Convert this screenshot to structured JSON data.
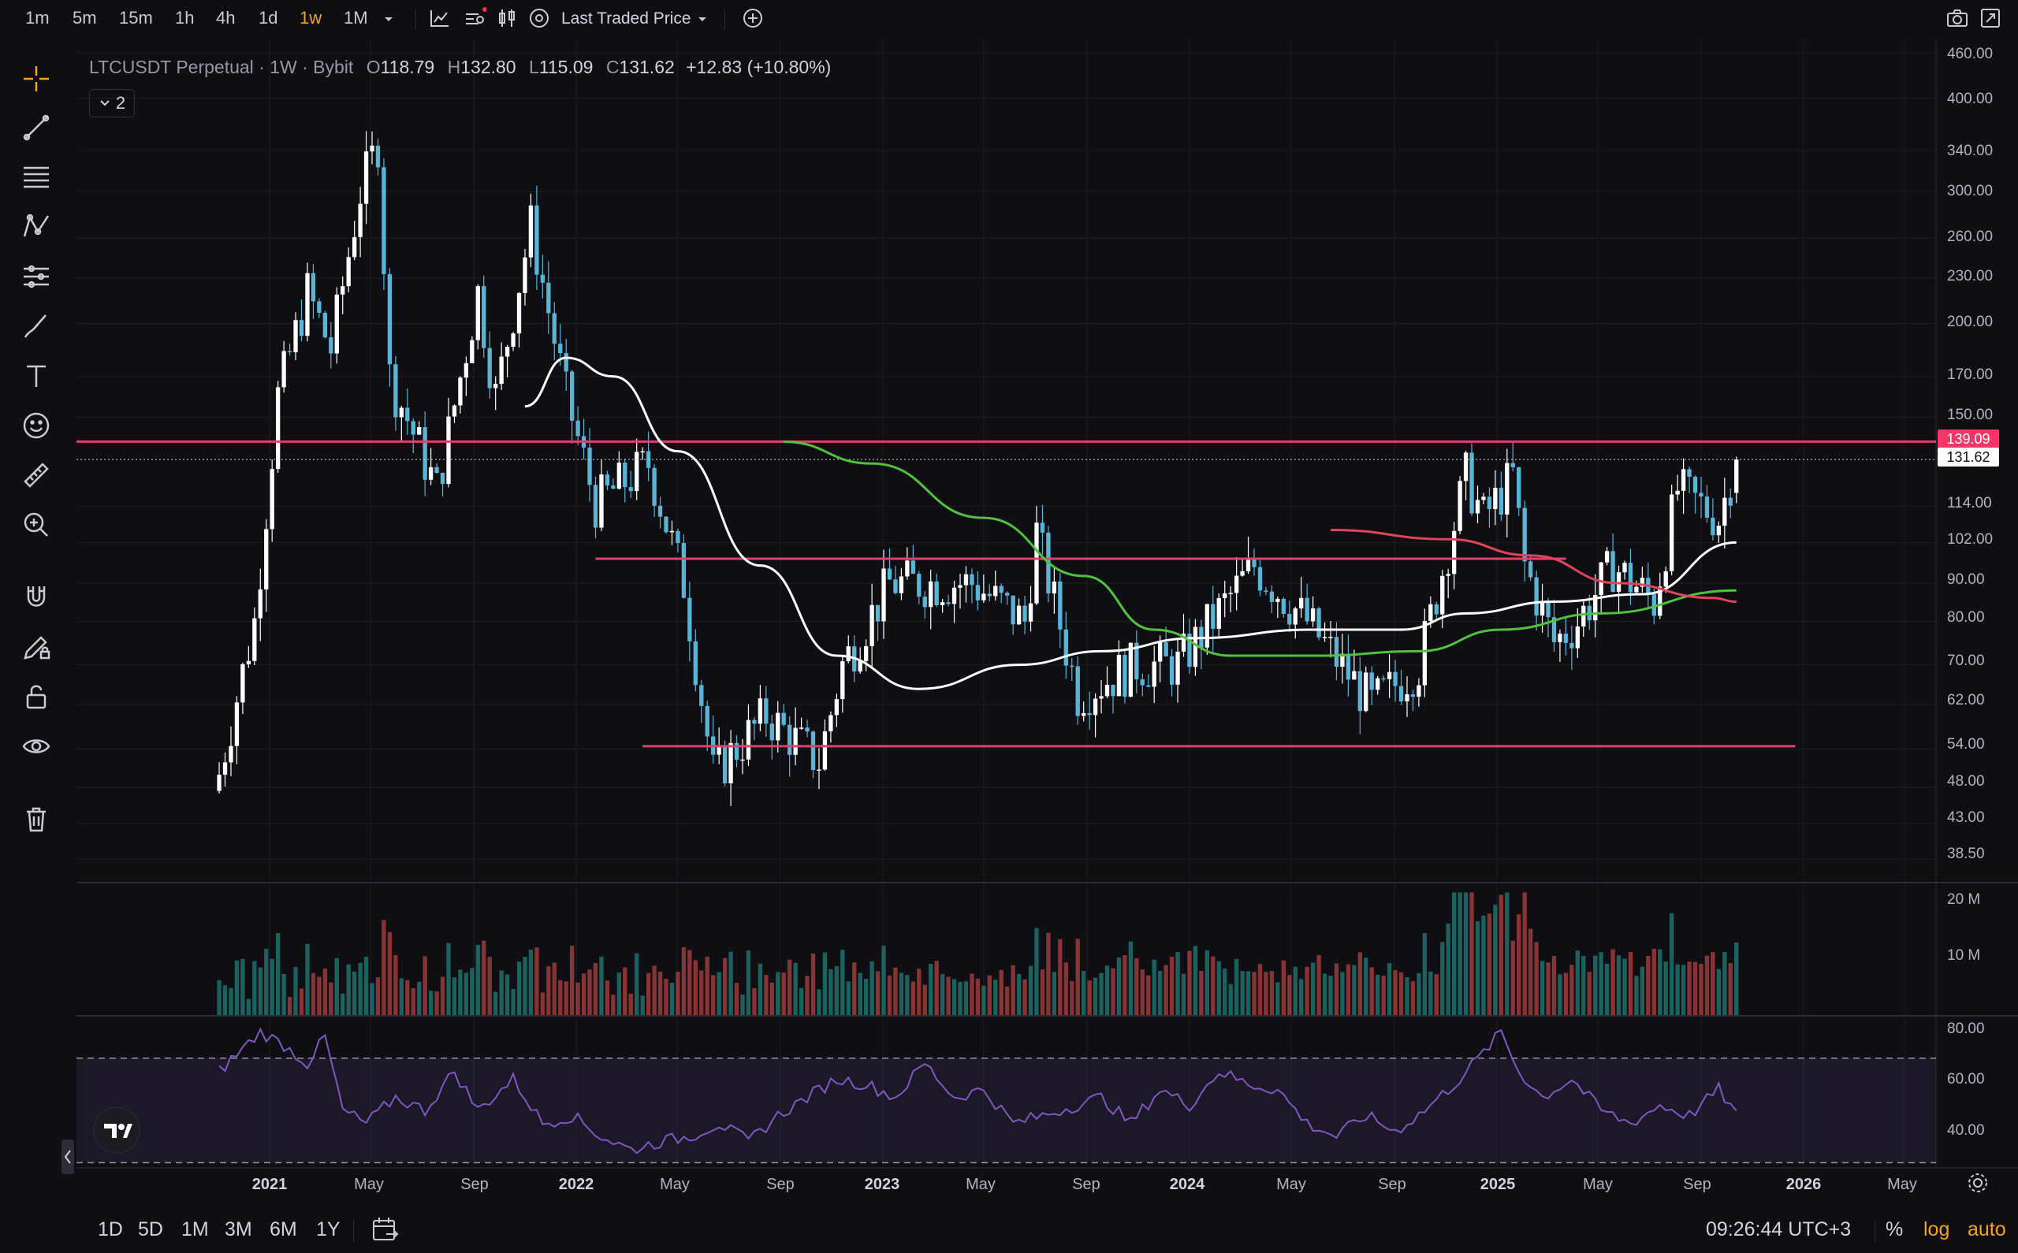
{
  "toolbar": {
    "timeframes": [
      "1m",
      "5m",
      "15m",
      "1h",
      "4h",
      "1d",
      "1w",
      "1M"
    ],
    "active_timeframe": "1w",
    "price_source": "Last Traded Price"
  },
  "legend": {
    "symbol": "LTCUSDT Perpetual · 1W · Bybit",
    "open_label": "O",
    "open": "118.79",
    "high_label": "H",
    "high": "132.80",
    "low_label": "L",
    "low": "115.09",
    "close_label": "C",
    "close": "131.62",
    "change": "+12.83 (+10.80%)",
    "indicators_count": "2"
  },
  "price_axis": {
    "ticks": [
      "460.00",
      "400.00",
      "340.00",
      "300.00",
      "260.00",
      "230.00",
      "200.00",
      "170.00",
      "150.00",
      "114.00",
      "102.00",
      "90.00",
      "80.00",
      "70.00",
      "62.00",
      "54.00",
      "48.00",
      "43.00",
      "38.50"
    ],
    "current_price_badge": "131.62",
    "line_price_badge": "139.09",
    "badge_line_color": "#f23668",
    "badge_price_color": "#ffffff"
  },
  "volume_axis": {
    "ticks": [
      "20 M",
      "10 M"
    ]
  },
  "rsi_axis": {
    "ticks": [
      "80.00",
      "60.00",
      "40.00"
    ]
  },
  "time_axis": {
    "labels": [
      {
        "text": "2021",
        "year": true
      },
      {
        "text": "May",
        "year": false
      },
      {
        "text": "Sep",
        "year": false
      },
      {
        "text": "2022",
        "year": true
      },
      {
        "text": "May",
        "year": false
      },
      {
        "text": "Sep",
        "year": false
      },
      {
        "text": "2023",
        "year": true
      },
      {
        "text": "May",
        "year": false
      },
      {
        "text": "Sep",
        "year": false
      },
      {
        "text": "2024",
        "year": true
      },
      {
        "text": "May",
        "year": false
      },
      {
        "text": "Sep",
        "year": false
      },
      {
        "text": "2025",
        "year": true
      },
      {
        "text": "May",
        "year": false
      },
      {
        "text": "Sep",
        "year": false
      },
      {
        "text": "2026",
        "year": true
      },
      {
        "text": "May",
        "year": false
      }
    ]
  },
  "bottom_bar": {
    "ranges": [
      "1D",
      "5D",
      "1M",
      "3M",
      "6M",
      "1Y"
    ],
    "clock": "09:26:44 UTC+3",
    "percent_label": "%",
    "log_label": "log",
    "auto_label": "auto"
  },
  "colors": {
    "up_candle": "#ffffff",
    "down_candle": "#5ab4d6",
    "horizontal_lines": "#e2406c",
    "ma_white": "#ffffff",
    "ma_green": "#4fc33c",
    "ma_red": "#e0445a",
    "rsi_line": "#7e57c2",
    "accent_active": "#f7a21b"
  },
  "chart_data": {
    "type": "candlestick",
    "symbol": "LTCUSDT Perpetual",
    "interval": "1W",
    "scale": "log",
    "ylim": [
      36,
      470
    ],
    "horizontal_levels": [
      139.09,
      97,
      54.5
    ],
    "anchors": [
      {
        "date": "2020-11-02",
        "close": 50
      },
      {
        "date": "2020-12-14",
        "close": 80
      },
      {
        "date": "2021-01-11",
        "close": 160
      },
      {
        "date": "2021-02-15",
        "close": 220
      },
      {
        "date": "2021-03-15",
        "close": 185
      },
      {
        "date": "2021-04-19",
        "close": 300
      },
      {
        "date": "2021-05-10",
        "close": 350
      },
      {
        "date": "2021-05-24",
        "close": 170
      },
      {
        "date": "2021-07-19",
        "close": 120
      },
      {
        "date": "2021-09-06",
        "close": 220
      },
      {
        "date": "2021-09-27",
        "close": 160
      },
      {
        "date": "2021-11-08",
        "close": 270
      },
      {
        "date": "2021-12-20",
        "close": 160
      },
      {
        "date": "2022-01-24",
        "close": 115
      },
      {
        "date": "2022-03-28",
        "close": 130
      },
      {
        "date": "2022-05-09",
        "close": 90
      },
      {
        "date": "2022-06-13",
        "close": 50
      },
      {
        "date": "2022-08-15",
        "close": 60
      },
      {
        "date": "2022-10-17",
        "close": 52
      },
      {
        "date": "2022-11-14",
        "close": 70
      },
      {
        "date": "2023-01-09",
        "close": 90
      },
      {
        "date": "2023-04-17",
        "close": 90
      },
      {
        "date": "2023-06-19",
        "close": 80
      },
      {
        "date": "2023-07-03",
        "close": 105
      },
      {
        "date": "2023-08-21",
        "close": 64
      },
      {
        "date": "2023-10-30",
        "close": 70
      },
      {
        "date": "2023-12-18",
        "close": 70
      },
      {
        "date": "2024-03-18",
        "close": 95
      },
      {
        "date": "2024-05-20",
        "close": 80
      },
      {
        "date": "2024-08-05",
        "close": 62
      },
      {
        "date": "2024-09-30",
        "close": 70
      },
      {
        "date": "2024-11-25",
        "close": 125
      },
      {
        "date": "2024-12-16",
        "close": 110
      },
      {
        "date": "2025-01-20",
        "close": 125
      },
      {
        "date": "2025-02-03",
        "close": 95
      },
      {
        "date": "2025-03-10",
        "close": 75
      },
      {
        "date": "2025-04-07",
        "close": 80
      },
      {
        "date": "2025-05-19",
        "close": 95
      },
      {
        "date": "2025-07-07",
        "close": 85
      },
      {
        "date": "2025-08-04",
        "close": 120
      },
      {
        "date": "2025-09-22",
        "close": 110
      },
      {
        "date": "2025-10-13",
        "close": 131.62
      }
    ],
    "moving_averages": [
      {
        "color": "#ffffff",
        "points": [
          [
            "2021-11-01",
            155
          ],
          [
            "2021-12-20",
            180
          ],
          [
            "2022-02-14",
            170
          ],
          [
            "2022-05-02",
            135
          ],
          [
            "2022-08-08",
            95
          ],
          [
            "2022-11-07",
            72
          ],
          [
            "2023-02-13",
            65
          ],
          [
            "2023-06-12",
            70
          ],
          [
            "2023-09-18",
            73
          ],
          [
            "2024-01-08",
            76
          ],
          [
            "2024-05-27",
            78
          ],
          [
            "2024-09-09",
            78
          ],
          [
            "2024-11-25",
            82
          ],
          [
            "2025-03-10",
            85
          ],
          [
            "2025-06-23",
            87
          ],
          [
            "2025-10-13",
            102
          ]
        ]
      },
      {
        "color": "#4fc33c",
        "points": [
          [
            "2022-09-05",
            139
          ],
          [
            "2022-12-19",
            130
          ],
          [
            "2023-05-01",
            110
          ],
          [
            "2023-08-28",
            92
          ],
          [
            "2023-11-20",
            78
          ],
          [
            "2024-02-19",
            72
          ],
          [
            "2024-06-03",
            72
          ],
          [
            "2024-09-30",
            73
          ],
          [
            "2025-01-06",
            78
          ],
          [
            "2025-05-05",
            82
          ],
          [
            "2025-10-13",
            88
          ]
        ]
      },
      {
        "color": "#e0445a",
        "points": [
          [
            "2024-06-17",
            106
          ],
          [
            "2024-11-04",
            103
          ],
          [
            "2025-02-10",
            98
          ],
          [
            "2025-05-26",
            90
          ],
          [
            "2025-09-15",
            86
          ],
          [
            "2025-10-13",
            85
          ]
        ]
      }
    ],
    "rsi_anchors": [
      [
        0,
        65
      ],
      [
        7,
        80
      ],
      [
        11,
        75
      ],
      [
        15,
        68
      ],
      [
        18,
        78
      ],
      [
        21,
        50
      ],
      [
        25,
        45
      ],
      [
        30,
        55
      ],
      [
        35,
        50
      ],
      [
        40,
        65
      ],
      [
        44,
        50
      ],
      [
        50,
        62
      ],
      [
        55,
        45
      ],
      [
        60,
        48
      ],
      [
        65,
        40
      ],
      [
        70,
        35
      ],
      [
        75,
        38
      ],
      [
        80,
        40
      ],
      [
        85,
        45
      ],
      [
        90,
        38
      ],
      [
        95,
        48
      ],
      [
        100,
        55
      ],
      [
        105,
        62
      ],
      [
        110,
        60
      ],
      [
        115,
        55
      ],
      [
        120,
        68
      ],
      [
        125,
        55
      ],
      [
        130,
        58
      ],
      [
        135,
        45
      ],
      [
        140,
        48
      ],
      [
        150,
        55
      ],
      [
        155,
        45
      ],
      [
        160,
        58
      ],
      [
        165,
        52
      ],
      [
        170,
        65
      ],
      [
        175,
        60
      ],
      [
        180,
        58
      ],
      [
        185,
        45
      ],
      [
        190,
        40
      ],
      [
        195,
        48
      ],
      [
        200,
        42
      ],
      [
        205,
        50
      ],
      [
        210,
        60
      ],
      [
        215,
        72
      ],
      [
        218,
        80
      ],
      [
        221,
        65
      ],
      [
        225,
        55
      ],
      [
        230,
        62
      ],
      [
        235,
        50
      ],
      [
        240,
        45
      ],
      [
        245,
        52
      ],
      [
        250,
        48
      ],
      [
        255,
        58
      ],
      [
        260,
        42
      ],
      [
        265,
        50
      ],
      [
        270,
        55
      ],
      [
        275,
        62
      ],
      [
        280,
        60
      ],
      [
        285,
        55
      ],
      [
        287,
        63
      ]
    ]
  }
}
